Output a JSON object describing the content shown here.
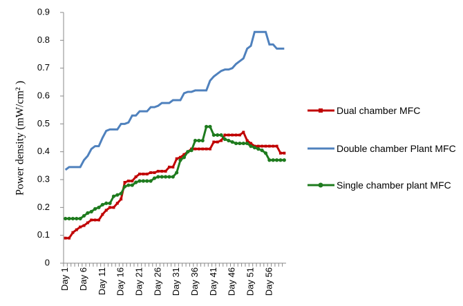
{
  "chart_data": {
    "type": "line",
    "y_label": "Power density (mW/cm² )",
    "categories": [
      "Day 1",
      null,
      null,
      null,
      null,
      "Day 6",
      null,
      null,
      null,
      null,
      "Day 11",
      null,
      null,
      null,
      null,
      "Day 16",
      null,
      null,
      null,
      null,
      "Day 21",
      null,
      null,
      null,
      null,
      "Day 26",
      null,
      null,
      null,
      null,
      "Day 31",
      null,
      null,
      null,
      null,
      "Day 36",
      null,
      null,
      null,
      null,
      "Day 41",
      null,
      null,
      null,
      null,
      "Day 46",
      null,
      null,
      null,
      null,
      "Day 51",
      null,
      null,
      null,
      null,
      "Day 56",
      null,
      null,
      null,
      null
    ],
    "series": [
      {
        "name": "Dual chamber MFC",
        "color": "#c00000",
        "marker": "square",
        "values": [
          0.09,
          0.09,
          0.11,
          0.12,
          0.13,
          0.135,
          0.145,
          0.155,
          0.155,
          0.155,
          0.175,
          0.19,
          0.2,
          0.2,
          0.215,
          0.23,
          0.29,
          0.295,
          0.295,
          0.31,
          0.32,
          0.32,
          0.32,
          0.325,
          0.325,
          0.33,
          0.33,
          0.33,
          0.345,
          0.345,
          0.375,
          0.38,
          0.39,
          0.4,
          0.41,
          0.41,
          0.41,
          0.41,
          0.41,
          0.41,
          0.435,
          0.435,
          0.44,
          0.46,
          0.46,
          0.46,
          0.46,
          0.46,
          0.47,
          0.44,
          0.43,
          0.42,
          0.42,
          0.42,
          0.42,
          0.42,
          0.42,
          0.42,
          0.395,
          0.395
        ]
      },
      {
        "name": "Double chamber Plant MFC",
        "color": "#4f81bd",
        "marker": "none",
        "values": [
          0.335,
          0.345,
          0.345,
          0.345,
          0.345,
          0.37,
          0.385,
          0.41,
          0.42,
          0.42,
          0.45,
          0.475,
          0.48,
          0.48,
          0.48,
          0.5,
          0.5,
          0.505,
          0.53,
          0.53,
          0.545,
          0.545,
          0.545,
          0.56,
          0.56,
          0.565,
          0.575,
          0.575,
          0.575,
          0.585,
          0.585,
          0.585,
          0.61,
          0.615,
          0.615,
          0.62,
          0.62,
          0.62,
          0.62,
          0.655,
          0.67,
          0.68,
          0.69,
          0.695,
          0.695,
          0.7,
          0.715,
          0.725,
          0.735,
          0.77,
          0.78,
          0.83,
          0.83,
          0.83,
          0.83,
          0.785,
          0.785,
          0.77,
          0.77,
          0.77
        ]
      },
      {
        "name": "Single chamber plant MFC",
        "color": "#1e7b1e",
        "marker": "circle",
        "values": [
          0.16,
          0.16,
          0.16,
          0.16,
          0.16,
          0.17,
          0.18,
          0.185,
          0.195,
          0.2,
          0.21,
          0.215,
          0.215,
          0.24,
          0.245,
          0.25,
          0.275,
          0.28,
          0.28,
          0.29,
          0.295,
          0.295,
          0.295,
          0.295,
          0.305,
          0.31,
          0.31,
          0.31,
          0.31,
          0.31,
          0.325,
          0.37,
          0.38,
          0.4,
          0.405,
          0.44,
          0.44,
          0.44,
          0.49,
          0.49,
          0.46,
          0.46,
          0.46,
          0.445,
          0.44,
          0.435,
          0.43,
          0.43,
          0.43,
          0.43,
          0.42,
          0.415,
          0.41,
          0.405,
          0.395,
          0.37,
          0.37,
          0.37,
          0.37,
          0.37
        ]
      }
    ],
    "ylim": [
      0,
      0.9
    ],
    "yticks": [
      0,
      0.1,
      0.2,
      0.3,
      0.4,
      0.5,
      0.6,
      0.7,
      0.8,
      0.9
    ],
    "grid": false,
    "legend": "right"
  }
}
